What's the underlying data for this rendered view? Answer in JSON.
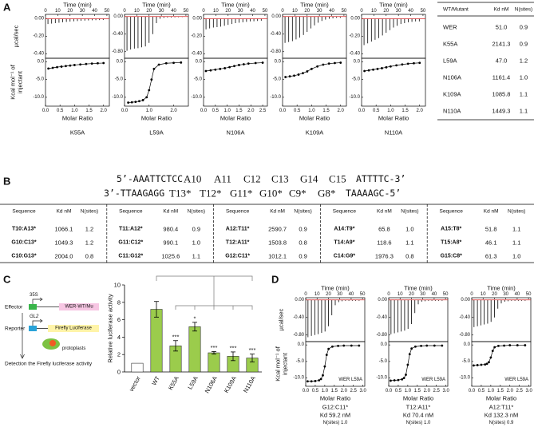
{
  "itc_common": {
    "time_label": "Time (min)",
    "time_lim": [
      0,
      52
    ],
    "time_ticks": [
      0,
      10,
      20,
      30,
      40,
      50
    ],
    "injection_times": [
      2,
      5,
      8,
      11,
      14,
      17,
      20,
      23,
      26,
      29,
      32,
      35,
      38,
      41,
      44,
      47
    ],
    "power_label": "µcal/sec",
    "heat_label": [
      "Kcal mol⁻¹ of",
      "injectant"
    ],
    "heat_lim": [
      -12.5,
      1
    ],
    "heat_ticks": [
      {
        "value": 0,
        "label": "0.0"
      },
      {
        "value": -5,
        "label": "-5.0"
      },
      {
        "value": -10,
        "label": "-10.0"
      }
    ],
    "ratio_label": "Molar Ratio",
    "baseline_color": "#d62728"
  },
  "panel_a": {
    "label": "A",
    "plots": [
      {
        "name": "K55A",
        "power_lim": [
          -0.45,
          0.05
        ],
        "power_ticks": [
          {
            "value": 0,
            "label": "0.00"
          },
          {
            "value": -0.2,
            "label": "-0.20"
          },
          {
            "value": -0.4,
            "label": "-0.40"
          }
        ],
        "peaks": [
          -0.06,
          -0.055,
          -0.05,
          -0.045,
          -0.04,
          -0.036,
          -0.032,
          -0.029,
          -0.026,
          -0.023,
          -0.021,
          -0.019,
          -0.017,
          -0.016,
          -0.015,
          -0.014
        ],
        "ratio_lim": [
          0,
          2.2
        ],
        "ratio_ticks": [
          {
            "value": 0,
            "label": "0.0"
          },
          0.5,
          {
            "value": 1,
            "label": "1.0"
          },
          1.5,
          {
            "value": 2,
            "label": "2.0"
          }
        ],
        "ratio": [
          0.1,
          0.25,
          0.4,
          0.55,
          0.7,
          0.85,
          1.0,
          1.2,
          1.4,
          1.6,
          1.8,
          2.0
        ],
        "heat": [
          -1.9,
          -1.7,
          -1.5,
          -1.35,
          -1.2,
          -1.05,
          -0.9,
          -0.75,
          -0.6,
          -0.5,
          -0.4,
          -0.35
        ]
      },
      {
        "name": "L59A",
        "power_lim": [
          -0.95,
          0.05
        ],
        "power_ticks": [
          {
            "value": 0,
            "label": "0.00"
          },
          {
            "value": -0.4,
            "label": "-0.40"
          },
          {
            "value": -0.8,
            "label": "-0.80"
          }
        ],
        "peaks": [
          -0.78,
          -0.75,
          -0.73,
          -0.72,
          -0.7,
          -0.68,
          -0.6,
          -0.4,
          -0.15,
          -0.05,
          -0.03,
          -0.02,
          -0.02,
          -0.015,
          -0.015,
          -0.01
        ],
        "ratio_lim": [
          0,
          2.6
        ],
        "ratio_ticks": [
          {
            "value": 0,
            "label": "0.0"
          },
          {
            "value": 1,
            "label": "1.0"
          },
          {
            "value": 2,
            "label": "2.0"
          }
        ],
        "ratio": [
          0.15,
          0.3,
          0.45,
          0.6,
          0.75,
          0.9,
          1.0,
          1.1,
          1.2,
          1.4,
          1.7,
          2.0,
          2.3
        ],
        "heat": [
          -11.5,
          -11.4,
          -11.3,
          -11.1,
          -10.8,
          -10,
          -8,
          -5,
          -2,
          -0.8,
          -0.4,
          -0.3,
          -0.2
        ]
      },
      {
        "name": "N106A",
        "power_lim": [
          -0.45,
          0.05
        ],
        "power_ticks": [
          {
            "value": 0,
            "label": "0.00"
          },
          {
            "value": -0.2,
            "label": "-0.20"
          },
          {
            "value": -0.4,
            "label": "-0.40"
          }
        ],
        "peaks": [
          -0.12,
          -0.11,
          -0.1,
          -0.095,
          -0.09,
          -0.08,
          -0.07,
          -0.06,
          -0.05,
          -0.045,
          -0.04,
          -0.035,
          -0.03,
          -0.028,
          -0.025,
          -0.022
        ],
        "ratio_lim": [
          0,
          2.7
        ],
        "ratio_ticks": [
          {
            "value": 0,
            "label": "0.0"
          },
          0.5,
          {
            "value": 1,
            "label": "1.0"
          },
          1.5,
          {
            "value": 2,
            "label": "2.0"
          },
          2.5
        ],
        "ratio": [
          0.1,
          0.3,
          0.5,
          0.7,
          0.9,
          1.1,
          1.3,
          1.5,
          1.7,
          1.9,
          2.2,
          2.5
        ],
        "heat": [
          -2.6,
          -2.4,
          -2.2,
          -2.0,
          -1.8,
          -1.5,
          -1.2,
          -0.9,
          -0.7,
          -0.5,
          -0.35,
          -0.25
        ]
      },
      {
        "name": "K109A",
        "power_lim": [
          -0.95,
          0.05
        ],
        "power_ticks": [
          {
            "value": 0,
            "label": "0.00"
          },
          {
            "value": -0.4,
            "label": "-0.40"
          },
          {
            "value": -0.8,
            "label": "-0.80"
          }
        ],
        "peaks": [
          -0.6,
          -0.58,
          -0.56,
          -0.52,
          -0.48,
          -0.42,
          -0.35,
          -0.27,
          -0.2,
          -0.14,
          -0.1,
          -0.07,
          -0.05,
          -0.04,
          -0.03,
          -0.03
        ],
        "ratio_lim": [
          0,
          2.2
        ],
        "ratio_ticks": [
          {
            "value": 0,
            "label": "0.0"
          },
          0.5,
          {
            "value": 1,
            "label": "1.0"
          },
          1.5,
          {
            "value": 2,
            "label": "2.0"
          }
        ],
        "ratio": [
          0.1,
          0.25,
          0.4,
          0.55,
          0.7,
          0.85,
          1.0,
          1.2,
          1.4,
          1.6,
          1.8,
          2.0
        ],
        "heat": [
          -4.3,
          -4.1,
          -3.9,
          -3.6,
          -3.2,
          -2.7,
          -2.0,
          -1.3,
          -0.8,
          -0.5,
          -0.35,
          -0.25
        ]
      },
      {
        "name": "N110A",
        "power_lim": [
          -0.45,
          0.05
        ],
        "power_ticks": [
          {
            "value": 0,
            "label": "0.00"
          },
          {
            "value": -0.2,
            "label": "-0.20"
          },
          {
            "value": -0.4,
            "label": "-0.40"
          }
        ],
        "peaks": [
          -0.3,
          -0.28,
          -0.26,
          -0.24,
          -0.22,
          -0.19,
          -0.16,
          -0.13,
          -0.1,
          -0.08,
          -0.06,
          -0.05,
          -0.04,
          -0.035,
          -0.03,
          -0.03
        ],
        "ratio_lim": [
          0,
          2.2
        ],
        "ratio_ticks": [
          {
            "value": 0,
            "label": "0.0"
          },
          0.5,
          {
            "value": 1,
            "label": "1.0"
          },
          1.5,
          {
            "value": 2,
            "label": "2.0"
          }
        ],
        "ratio": [
          0.1,
          0.25,
          0.4,
          0.55,
          0.7,
          0.85,
          1.0,
          1.2,
          1.4,
          1.6,
          1.8,
          2.0
        ],
        "heat": [
          -2.6,
          -2.4,
          -2.2,
          -2.0,
          -1.8,
          -1.55,
          -1.3,
          -1.0,
          -0.75,
          -0.55,
          -0.4,
          -0.3
        ]
      }
    ],
    "table": {
      "header": [
        "WT/Mutant",
        "Kd nM",
        "N(sites)"
      ],
      "rows": [
        [
          "WER",
          "51.0",
          "0.9"
        ],
        [
          "K55A",
          "2141.3",
          "0.9"
        ],
        [
          "L59A",
          "47.0",
          "1.2"
        ],
        [
          "N106A",
          "1161.4",
          "1.0"
        ],
        [
          "K109A",
          "1085.8",
          "1.1"
        ],
        [
          "N110A",
          "1449.3",
          "1.1"
        ]
      ]
    }
  },
  "panel_b": {
    "label": "B",
    "top_strand": {
      "prefix": "5’-AAATTCTCC",
      "bases": [
        "A10",
        "A11",
        "C12",
        "C13",
        "G14",
        "C15"
      ],
      "suffix": "ATTTTC-3’"
    },
    "bottom_strand": {
      "prefix": "3’-TTAAGAGG",
      "bases": [
        "T13*",
        "T12*",
        "G11*",
        "G10*",
        "C9*",
        "G8*"
      ],
      "suffix": "TAAAAGC-5’"
    },
    "base_colors": [
      "#e3262b",
      "#29a3d8",
      "#36a33a",
      "#111111",
      "#d22a8e",
      "#ef7d1c"
    ],
    "header": [
      "Sequence",
      "Kd nM",
      "N(sites)"
    ],
    "groups": [
      {
        "color": "#e3262b",
        "rows": [
          [
            "T10:A13*",
            "1066.1",
            "1.2"
          ],
          [
            "G10:C13*",
            "1049.3",
            "1.2"
          ],
          [
            "C10:G13*",
            "2004.0",
            "0.8"
          ]
        ]
      },
      {
        "color": "#29a3d8",
        "rows": [
          [
            "T11:A12*",
            "980.4",
            "0.9"
          ],
          [
            "G11:C12*",
            "990.1",
            "1.0"
          ],
          [
            "C11:G12*",
            "1025.6",
            "1.1"
          ]
        ]
      },
      {
        "color": "#36a33a",
        "rows": [
          [
            "A12:T11*",
            "2590.7",
            "0.9"
          ],
          [
            "T12:A11*",
            "1503.8",
            "0.8"
          ],
          [
            "G12:C11*",
            "1012.1",
            "0.9"
          ]
        ]
      },
      {
        "color": "#d22a8e",
        "rows": [
          [
            "A14:T9*",
            "65.8",
            "1.0"
          ],
          [
            "T14:A9*",
            "118.6",
            "1.1"
          ],
          [
            "C14:G9*",
            "1976.3",
            "0.8"
          ]
        ]
      },
      {
        "color": "#ef7d1c",
        "rows": [
          [
            "A15:T8*",
            "51.8",
            "1.1"
          ],
          [
            "T15:A8*",
            "46.1",
            "1.1"
          ],
          [
            "G15:C8*",
            "61.3",
            "1.0"
          ]
        ]
      }
    ]
  },
  "panel_c": {
    "label": "C",
    "diagram": {
      "effector": "Effector",
      "promoter_35s": "35S",
      "effector_gene": "WER-WT/Mu",
      "reporter": "Reporter",
      "promoter_gl2": "GL2",
      "reporter_gene": "Firefly Luciferase",
      "cells": "protoplasts",
      "readout": "Detection the Firefly luciferase activity"
    },
    "chart_data": {
      "type": "bar",
      "y_label": "Relative luciferase activity",
      "categories": [
        "vector",
        "WT",
        "K55A",
        "L59A",
        "N106A",
        "K109A",
        "N110A"
      ],
      "values": [
        1,
        7.2,
        3.0,
        5.2,
        2.2,
        1.8,
        1.6
      ],
      "errors": [
        null,
        0.9,
        0.6,
        0.5,
        0.15,
        0.5,
        0.45
      ],
      "significance": [
        null,
        null,
        "***",
        "*",
        "***",
        "***",
        "***"
      ],
      "colors": [
        "#ffffff",
        "#9bcc4c",
        "#9bcc4c",
        "#9bcc4c",
        "#9bcc4c",
        "#9bcc4c",
        "#9bcc4c"
      ],
      "ylim": [
        0,
        10
      ],
      "yticks": [
        0,
        2,
        4,
        6,
        8,
        10
      ]
    }
  },
  "panel_d": {
    "label": "D",
    "plots": [
      {
        "inset": "WER L59A",
        "caption": [
          "G12:C11*",
          "Kd 59.2 nM",
          "N(sites) 1.0"
        ],
        "power_lim": [
          -0.95,
          0.05
        ],
        "power_ticks": [
          {
            "value": 0,
            "label": "0.00"
          },
          {
            "value": -0.4,
            "label": "-0.40"
          },
          {
            "value": -0.8,
            "label": "-0.80"
          }
        ],
        "peaks": [
          -0.85,
          -0.82,
          -0.8,
          -0.78,
          -0.75,
          -0.72,
          -0.6,
          -0.35,
          -0.12,
          -0.05,
          -0.03,
          -0.02,
          -0.02,
          -0.02,
          -0.02,
          -0.02
        ],
        "ratio_lim": [
          0,
          3.1
        ],
        "ratio_ticks": [
          {
            "value": 0,
            "label": "0.0"
          },
          0.5,
          {
            "value": 1,
            "label": "1.0"
          },
          1.5,
          {
            "value": 2,
            "label": "2.0"
          },
          2.5,
          {
            "value": 3,
            "label": "3.0"
          }
        ],
        "ratio": [
          0.1,
          0.3,
          0.5,
          0.7,
          0.8,
          0.9,
          1.0,
          1.1,
          1.2,
          1.4,
          1.7,
          2.0,
          2.4,
          2.8
        ],
        "heat": [
          -11,
          -11,
          -10.9,
          -10.7,
          -10.3,
          -9.2,
          -6.5,
          -3,
          -1.2,
          -0.5,
          -0.3,
          -0.2,
          -0.2,
          -0.2
        ]
      },
      {
        "inset": "WER L59A",
        "caption": [
          "T12:A11*",
          "Kd 70.4 nM",
          "N(sites) 1.0"
        ],
        "power_lim": [
          -0.95,
          0.05
        ],
        "power_ticks": [
          {
            "value": 0,
            "label": "0.00"
          },
          {
            "value": -0.4,
            "label": "-0.40"
          },
          {
            "value": -0.8,
            "label": "-0.80"
          }
        ],
        "peaks": [
          -0.78,
          -0.76,
          -0.74,
          -0.72,
          -0.7,
          -0.66,
          -0.55,
          -0.3,
          -0.1,
          -0.04,
          -0.03,
          -0.02,
          -0.02,
          -0.02,
          -0.02,
          -0.02
        ],
        "ratio_lim": [
          0,
          3.1
        ],
        "ratio_ticks": [
          {
            "value": 0,
            "label": "0.0"
          },
          0.5,
          {
            "value": 1,
            "label": "1.0"
          },
          1.5,
          {
            "value": 2,
            "label": "2.0"
          },
          2.5,
          {
            "value": 3,
            "label": "3.0"
          }
        ],
        "ratio": [
          0.1,
          0.3,
          0.5,
          0.7,
          0.8,
          0.9,
          1.0,
          1.1,
          1.2,
          1.4,
          1.7,
          2.0,
          2.4,
          2.8
        ],
        "heat": [
          -10.8,
          -10.7,
          -10.6,
          -10.4,
          -10,
          -9,
          -6,
          -2.8,
          -1.1,
          -0.5,
          -0.3,
          -0.2,
          -0.2,
          -0.2
        ]
      },
      {
        "inset": "WER L59A",
        "caption": [
          "A12:T11*",
          "Kd 132.3 nM",
          "N(sites) 0.9"
        ],
        "power_lim": [
          -0.95,
          0.05
        ],
        "power_ticks": [
          {
            "value": 0,
            "label": "0.00"
          },
          {
            "value": -0.4,
            "label": "-0.40"
          },
          {
            "value": -0.8,
            "label": "-0.80"
          }
        ],
        "peaks": [
          -0.62,
          -0.6,
          -0.58,
          -0.56,
          -0.54,
          -0.5,
          -0.4,
          -0.2,
          -0.08,
          -0.04,
          -0.03,
          -0.02,
          -0.02,
          -0.02,
          -0.02,
          -0.02
        ],
        "ratio_lim": [
          0,
          3.1
        ],
        "ratio_ticks": [
          {
            "value": 0,
            "label": "0.0"
          },
          0.5,
          {
            "value": 1,
            "label": "1.0"
          },
          1.5,
          {
            "value": 2,
            "label": "2.0"
          },
          2.5,
          {
            "value": 3,
            "label": "3.0"
          }
        ],
        "ratio": [
          0.1,
          0.3,
          0.5,
          0.7,
          0.8,
          0.9,
          1.0,
          1.1,
          1.2,
          1.4,
          1.7,
          2.0,
          2.4,
          2.8
        ],
        "heat": [
          -6.2,
          -6.1,
          -6,
          -5.9,
          -5.7,
          -5.2,
          -3.8,
          -1.8,
          -0.7,
          -0.3,
          -0.2,
          -0.1,
          -0.1,
          -0.1
        ]
      }
    ]
  }
}
